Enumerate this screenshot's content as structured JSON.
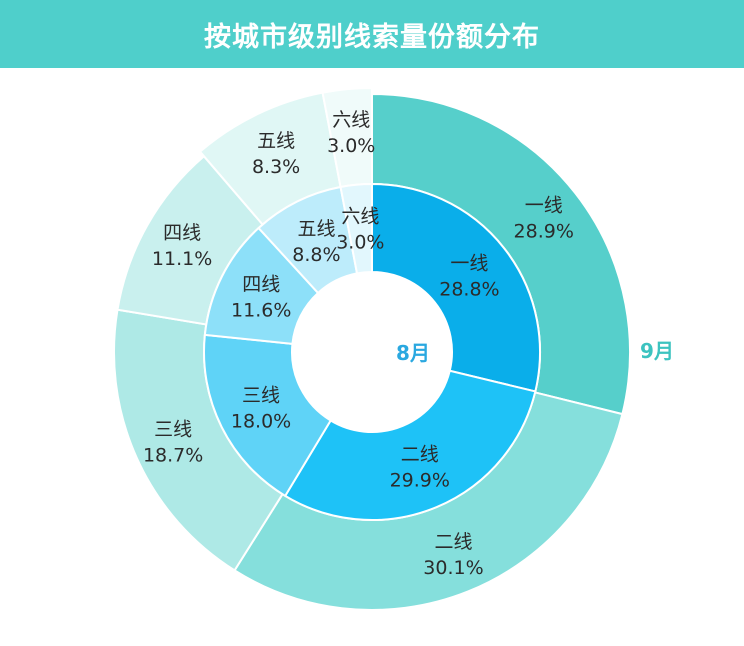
{
  "title": "按城市级别线索量份额分布",
  "colors": {
    "header_bg": "#4fcfcb",
    "month_label": "#2aa8e0",
    "outer_month_label": "#3cc3c0"
  },
  "chart_data": {
    "type": "donut",
    "categories": [
      "一线",
      "二线",
      "三线",
      "四线",
      "五线",
      "六线"
    ],
    "series": [
      {
        "name": "8月",
        "ring": "inner",
        "values": [
          28.8,
          29.9,
          18.0,
          11.6,
          8.8,
          3.0
        ],
        "labels": [
          "28.8%",
          "29.9%",
          "18.0%",
          "11.6%",
          "8.8%",
          "3.0%"
        ],
        "colors": [
          "#0aaeea",
          "#1ec2f7",
          "#5fd3f7",
          "#8de0f9",
          "#bdecfb",
          "#e2f7fd"
        ]
      },
      {
        "name": "9月",
        "ring": "outer",
        "values": [
          28.9,
          30.1,
          18.7,
          11.1,
          8.3,
          3.0
        ],
        "labels": [
          "28.9%",
          "30.1%",
          "18.7%",
          "11.1%",
          "8.3%",
          "3.0%"
        ],
        "colors": [
          "#56cfcb",
          "#85dfdc",
          "#aee9e6",
          "#c9f0ee",
          "#e0f7f5",
          "#f0fbfa"
        ]
      }
    ]
  }
}
